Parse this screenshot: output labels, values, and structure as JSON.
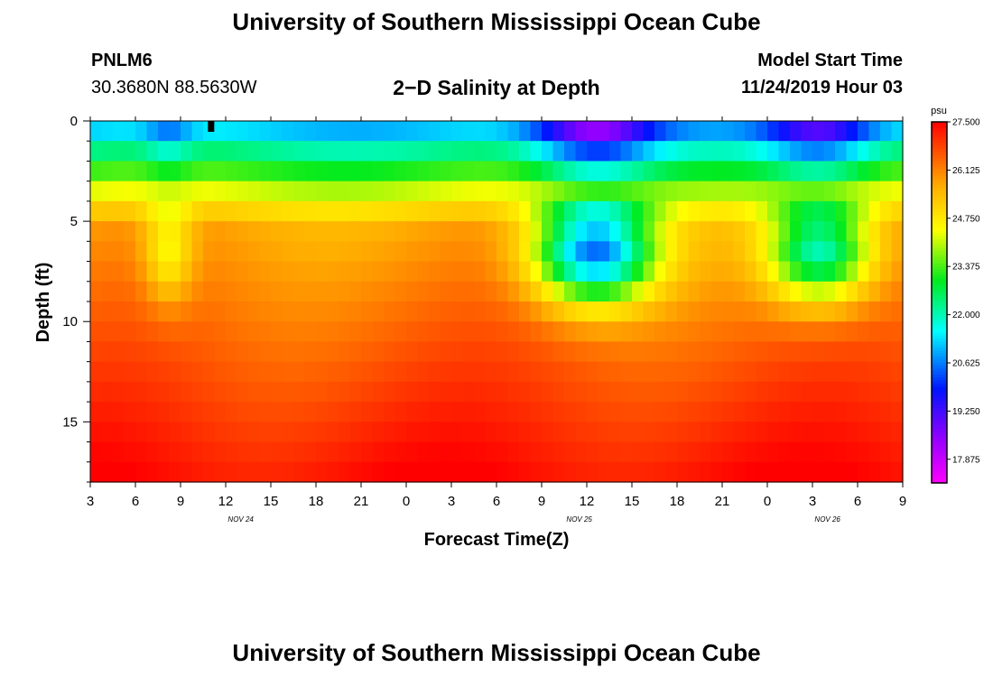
{
  "header": {
    "title": "University of Southern Mississippi Ocean Cube",
    "footer_title": "University of Southern Mississippi Ocean Cube",
    "station_id": "PNLM6",
    "station_location": "30.3680N 88.5630W",
    "plot_title": "2−D Salinity at Depth",
    "model_start_label": "Model Start Time",
    "model_start_value": "11/24/2019 Hour 03"
  },
  "chart_data": {
    "type": "heatmap",
    "title": "2−D Salinity at Depth",
    "xlabel": "Forecast Time(Z)",
    "ylabel": "Depth (ft)",
    "x_tick_labels": [
      "3",
      "6",
      "9",
      "12",
      "15",
      "18",
      "21",
      "0",
      "3",
      "6",
      "9",
      "12",
      "15",
      "18",
      "21",
      "0",
      "3",
      "6",
      "9"
    ],
    "x_range_hours": [
      0,
      54
    ],
    "date_labels": [
      {
        "text": "NOV 24",
        "hour": 10
      },
      {
        "text": "NOV 25",
        "hour": 32.5
      },
      {
        "text": "NOV 26",
        "hour": 49
      }
    ],
    "y_ticks": [
      0,
      5,
      10,
      15
    ],
    "y_range_ft": [
      0,
      18
    ],
    "depth_levels": 18,
    "colorbar": {
      "unit": "psu",
      "min": 17.2,
      "max": 27.5,
      "tick_values": [
        27.5,
        26.125,
        24.75,
        23.375,
        22.0,
        20.625,
        19.25,
        17.875
      ],
      "tick_labels": [
        "27.500",
        "26.125",
        "24.750",
        "23.375",
        "22.000",
        "20.625",
        "19.250",
        "17.875"
      ]
    },
    "marker": {
      "hour": 8,
      "depth_ft": 0,
      "color": "#000000"
    },
    "salinity_model": {
      "surface_base": 20.6,
      "deep_base": 27.3,
      "dips": [
        {
          "center_hour": 5.2,
          "width_hours": 1.6,
          "strength": 1.8
        },
        {
          "center_hour": 33.5,
          "width_hours": 4.0,
          "strength": 6.0
        },
        {
          "center_hour": 48.5,
          "width_hours": 3.5,
          "strength": 4.5
        }
      ]
    }
  }
}
